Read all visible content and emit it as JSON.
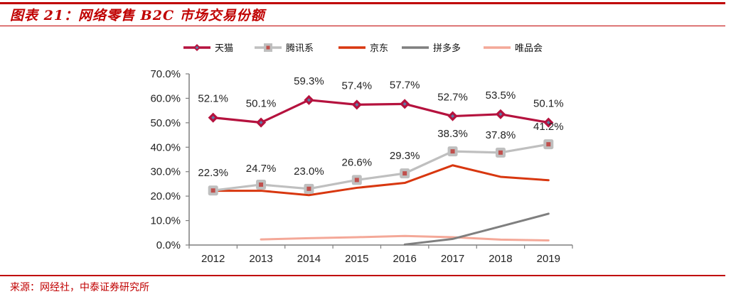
{
  "header": {
    "title": "图表 21：网络零售 B2C 市场交易份额"
  },
  "footer": {
    "source": "来源：网经社，中泰证券研究所"
  },
  "chart_data": {
    "type": "line",
    "title": "图表 21：网络零售 B2C 市场交易份额",
    "xlabel": "",
    "ylabel": "",
    "x": [
      "2012",
      "2013",
      "2014",
      "2015",
      "2016",
      "2017",
      "2018",
      "2019"
    ],
    "ylim": [
      0,
      70
    ],
    "yticks": [
      "0.0%",
      "10.0%",
      "20.0%",
      "30.0%",
      "40.0%",
      "50.0%",
      "60.0%",
      "70.0%"
    ],
    "ytick_values": [
      0,
      10,
      20,
      30,
      40,
      50,
      60,
      70
    ],
    "grid": false,
    "legend_position": "top",
    "series": [
      {
        "name": "天猫",
        "color": "#b5123e",
        "marker": "diamond",
        "marker_fill": "#5b7fa8",
        "values": [
          52.1,
          50.1,
          59.3,
          57.4,
          57.7,
          52.7,
          53.5,
          50.1
        ],
        "labels": [
          "52.1%",
          "50.1%",
          "59.3%",
          "57.4%",
          "57.7%",
          "52.7%",
          "53.5%",
          "50.1%"
        ]
      },
      {
        "name": "腾讯系",
        "color": "#bfbfbf",
        "marker": "square",
        "marker_fill": "#c0504d",
        "values": [
          22.3,
          24.7,
          23.0,
          26.6,
          29.3,
          38.3,
          37.8,
          41.2
        ],
        "labels": [
          "22.3%",
          "24.7%",
          "23.0%",
          "26.6%",
          "29.3%",
          "38.3%",
          "37.8%",
          "41.2%"
        ]
      },
      {
        "name": "京东",
        "color": "#d8370f",
        "marker": "none",
        "values": [
          22.2,
          22.2,
          20.4,
          23.4,
          25.4,
          32.6,
          27.9,
          26.5
        ],
        "labels": []
      },
      {
        "name": "拼多多",
        "color": "#7f7f7f",
        "marker": "none",
        "values": [
          null,
          null,
          null,
          null,
          0.2,
          2.5,
          7.6,
          12.8
        ],
        "labels": []
      },
      {
        "name": "唯品会",
        "color": "#f4a898",
        "marker": "none",
        "values": [
          null,
          2.3,
          2.8,
          3.2,
          3.7,
          3.2,
          2.2,
          1.9
        ],
        "labels": []
      }
    ]
  }
}
